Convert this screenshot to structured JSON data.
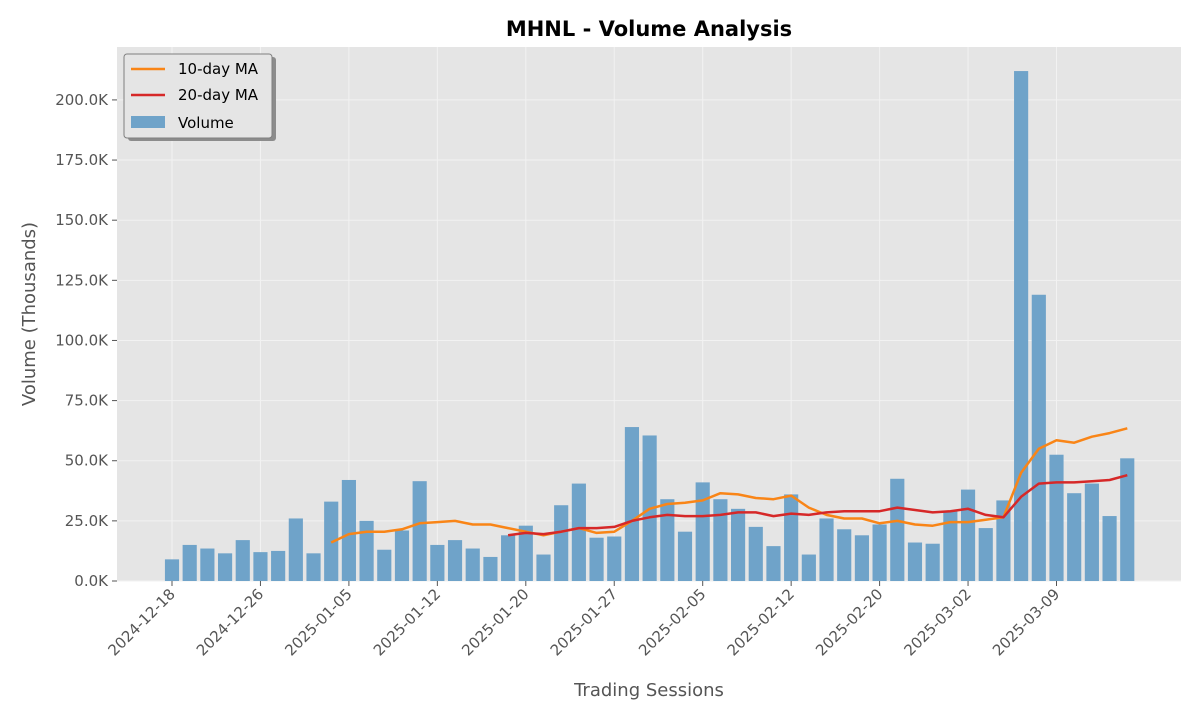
{
  "chart_data": {
    "type": "bar",
    "title": "MHNL - Volume Analysis",
    "xlabel": "Trading Sessions",
    "ylabel": "Volume (Thousands)",
    "ylim": [
      0,
      222000
    ],
    "yticks": [
      0,
      25000,
      50000,
      75000,
      100000,
      125000,
      150000,
      175000,
      200000
    ],
    "ytick_labels": [
      "0.0K",
      "25.0K",
      "50.0K",
      "75.0K",
      "100.0K",
      "125.0K",
      "150.0K",
      "175.0K",
      "200.0K"
    ],
    "xticks": [
      {
        "index": 0,
        "label": "2024-12-18"
      },
      {
        "index": 5,
        "label": "2024-12-26"
      },
      {
        "index": 10,
        "label": "2025-01-05"
      },
      {
        "index": 15,
        "label": "2025-01-12"
      },
      {
        "index": 20,
        "label": "2025-01-20"
      },
      {
        "index": 25,
        "label": "2025-01-27"
      },
      {
        "index": 30,
        "label": "2025-02-05"
      },
      {
        "index": 35,
        "label": "2025-02-12"
      },
      {
        "index": 40,
        "label": "2025-02-20"
      },
      {
        "index": 45,
        "label": "2025-03-02"
      },
      {
        "index": 50,
        "label": "2025-03-09"
      }
    ],
    "grid": true,
    "legend": "top-left",
    "colors": {
      "volume": "#6fa3c9",
      "ma10": "#f98517",
      "ma20": "#d62828",
      "background": "#e5e5e5",
      "grid": "#f2f2f2"
    },
    "series": [
      {
        "name": "Volume",
        "type": "bar",
        "values": [
          9000,
          15000,
          13500,
          11500,
          17000,
          12000,
          12500,
          26000,
          11500,
          33000,
          42000,
          25000,
          13000,
          21000,
          41500,
          15000,
          17000,
          13500,
          10000,
          19000,
          23000,
          11000,
          31500,
          40500,
          18000,
          18500,
          64000,
          60500,
          34000,
          20500,
          41000,
          34000,
          30000,
          22500,
          14500,
          36000,
          11000,
          26000,
          21500,
          19000,
          23500,
          42500,
          16000,
          15500,
          29000,
          38000,
          22000,
          33500,
          212000,
          119000,
          52500,
          36500,
          40500,
          27000,
          51000
        ]
      },
      {
        "name": "10-day MA",
        "type": "line",
        "start_index": 9,
        "values": [
          16000,
          19500,
          20500,
          20500,
          21500,
          24000,
          24500,
          25000,
          23500,
          23500,
          22000,
          20500,
          19000,
          20500,
          22000,
          20000,
          20500,
          25000,
          30000,
          32000,
          32500,
          33500,
          36500,
          36000,
          34500,
          34000,
          35500,
          30500,
          27500,
          26000,
          26000,
          24000,
          25000,
          23500,
          23000,
          24500,
          24500,
          25500,
          26500,
          45000,
          55000,
          58500,
          57500,
          60000,
          61500,
          63500
        ]
      },
      {
        "name": "20-day MA",
        "type": "line",
        "start_index": 19,
        "values": [
          19000,
          20000,
          19500,
          20500,
          22000,
          22000,
          22500,
          25000,
          26500,
          27500,
          27000,
          27000,
          27500,
          28500,
          28500,
          27000,
          28000,
          27500,
          28500,
          29000,
          29000,
          29000,
          30500,
          29500,
          28500,
          29000,
          30000,
          27500,
          26500,
          35000,
          40500,
          41000,
          41000,
          41500,
          42000,
          44000
        ]
      }
    ]
  }
}
